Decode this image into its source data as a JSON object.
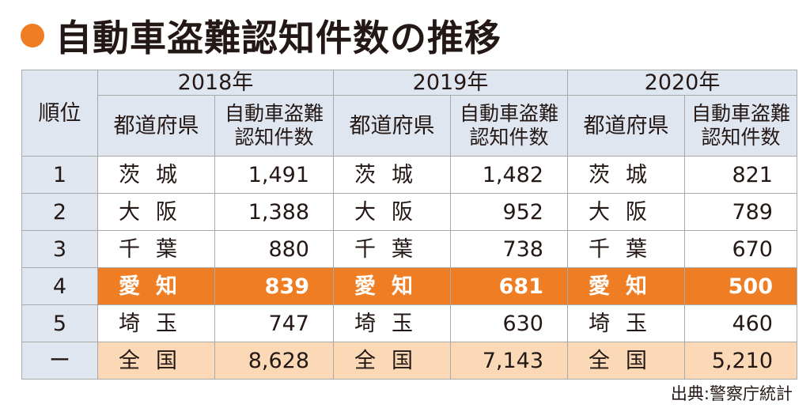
{
  "title": "自動車盗難認知件数の推移",
  "table": {
    "rank_header": "順位",
    "years": [
      "2018年",
      "2019年",
      "2020年"
    ],
    "pref_header": "都道府県",
    "count_header_line1": "自動車盗難",
    "count_header_line2": "認知件数",
    "rows": [
      {
        "rank": "1",
        "cells": [
          {
            "pref": "茨城",
            "count": "1,491"
          },
          {
            "pref": "茨城",
            "count": "1,482"
          },
          {
            "pref": "茨城",
            "count": "821"
          }
        ]
      },
      {
        "rank": "2",
        "cells": [
          {
            "pref": "大阪",
            "count": "1,388"
          },
          {
            "pref": "大阪",
            "count": "952"
          },
          {
            "pref": "大阪",
            "count": "789"
          }
        ]
      },
      {
        "rank": "3",
        "cells": [
          {
            "pref": "千葉",
            "count": "880"
          },
          {
            "pref": "千葉",
            "count": "738"
          },
          {
            "pref": "千葉",
            "count": "670"
          }
        ]
      },
      {
        "rank": "4",
        "cells": [
          {
            "pref": "愛知",
            "count": "839"
          },
          {
            "pref": "愛知",
            "count": "681"
          },
          {
            "pref": "愛知",
            "count": "500"
          }
        ]
      },
      {
        "rank": "5",
        "cells": [
          {
            "pref": "埼玉",
            "count": "747"
          },
          {
            "pref": "埼玉",
            "count": "630"
          },
          {
            "pref": "埼玉",
            "count": "460"
          }
        ]
      },
      {
        "rank": "ー",
        "cells": [
          {
            "pref": "全国",
            "count": "8,628"
          },
          {
            "pref": "全国",
            "count": "7,143"
          },
          {
            "pref": "全国",
            "count": "5,210"
          }
        ]
      }
    ]
  },
  "source": "出典:警察庁統計",
  "colors": {
    "accent_orange": "#ee7d23",
    "header_blue": "#dfe6f0",
    "total_peach": "#fbd9b7"
  }
}
